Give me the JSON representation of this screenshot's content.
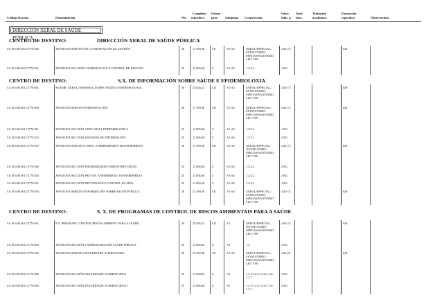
{
  "header": {
    "codigo": "Código de posto",
    "denominacion": "Denominación",
    "niv": "Nív.",
    "complem": "Complem.",
    "especifico": "específico",
    "forma": "Forma",
    "prov": "prov.",
    "subgrupo": "Subgrupo",
    "corpo": "Corpo/escala",
    "adscr": "Adscr.",
    "adm": "Adm. p.",
    "area": "Área",
    "func": "func.",
    "titulacion": "Titulación",
    "academica": "académica",
    "formacion": "Formación",
    "especifica": "específica",
    "observacions": "Observacións"
  },
  "title_box": "DIRECCIÓN XERAL DE SAÚDE PÚBLICA",
  "sections": [
    {
      "label": "CENTRO DE DESTINO:",
      "name": "DIRECCIÓN XERAL DE SAÚDE PÚBLICA",
      "rows": [
        {
          "code": "CS.A03.00.000.15770.040",
          "den": "XEFATURA SERVIZO DE COORDINACIÓN DA XESTIÓN",
          "niv": "28",
          "comp": "17.499,38",
          "forma": "CE",
          "sub": "A1-A2",
          "corpo": "XERAL/ESPECIAL/\nESTATUTARIO\nSERGAS/SANITARIO\nLEI 17/89",
          "adscr": "A20 (7)",
          "form": "640"
        },
        {
          "code": "CS.A03.00.000.15770.041",
          "den": "XEFATURA SECCIÓN COORDINACIÓN E CONTROL DE XESTIÓN",
          "niv": "25",
          "comp": "11.894,68",
          "forma": "C",
          "sub": "A1-A2",
          "corpo": "1.2/2.2",
          "adscr": "AXG",
          "form": ""
        }
      ]
    },
    {
      "label": "CENTRO DE DESTINO:",
      "name": "S.X. DE INFORMACIÓN SOBRE SAÚDE E EPIDEMIOLOXIA",
      "rows": [
        {
          "code": "CS.A03.00.001.15770.001",
          "den": "SUBDIR. XERAL INFORMAC.SOBRE SAÚDE E EPIDEMIOLOXIA",
          "niv": "30",
          "comp": "25.026,22",
          "forma": "LD",
          "sub": "A1-A2",
          "corpo": "XERAL/ESPECIAL/\nESTATUTARIO\nSERGAS/SANITARIO\nLEI 17/89",
          "adscr": "A20 (7)",
          "form": "640"
        },
        {
          "code": "CS.A03.00.001.15770.008",
          "den": "XEFATURA SERVIZO EPIDEMIOLOXÍA",
          "niv": "28",
          "comp": "17.499,38",
          "forma": "LD",
          "sub": "A1-A2",
          "corpo": "XERAL/ESPECIAL/\nESTATUTARIO\nSERGAS/SANITARIO\nLEI 17/89",
          "adscr": "A20 (7)",
          "form": "640"
        },
        {
          "code": "CS.A03.00.001.15770.011",
          "den": "XEFATURA SECCIÓN VIXILANCIA EPIDEMIOLÓXICA",
          "niv": "25",
          "comp": "11.894,68",
          "forma": "C",
          "sub": "A1-A2",
          "corpo": "1.2/2.2",
          "adscr": "AXG",
          "form": ""
        },
        {
          "code": "CS.A03.00.001.15770.013",
          "den": "XEFATURA SECCIÓN SISTEMAS DE INFORMACIÓN",
          "niv": "25",
          "comp": "11.894,68",
          "forma": "C",
          "sub": "A1-A2",
          "corpo": "1.2/2.2",
          "adscr": "AXG",
          "form": ""
        },
        {
          "code": "CS.A03.00.001.15770.015",
          "den": "XEFATURA SERVIZO CTROL. ENFERMIDADES TRANSMISIBLES",
          "niv": "28",
          "comp": "17.499,38",
          "forma": "CE",
          "sub": "A1-A2",
          "corpo": "XERAL/ESPECIAL\n/ESTATUTARIO\nSERGAS/SANITARIO\nLEI 17/89",
          "adscr": "A20 (7)",
          "form": "640"
        },
        {
          "code": "CS.A03.00.001.15770.018",
          "den": "XEFATURA SECCIÓN ENFERMIDADES INMUNOPREVIBLES",
          "niv": "25",
          "comp": "11.894,68",
          "forma": "C",
          "sub": "A1-A2",
          "corpo": "1.2/2.2",
          "adscr": "AXG",
          "form": ""
        },
        {
          "code": "CS.A03.00.001.15770.020",
          "den": "XEFATURA SECCIÓN PREVEN. ENFERMIDAD. TRANSMISIBLES",
          "niv": "25",
          "comp": "11.894,68",
          "forma": "C",
          "sub": "A1-A2",
          "corpo": "1.2/2.2",
          "adscr": "AXG",
          "form": ""
        },
        {
          "code": "CS.A03.00.001.15770.021",
          "den": "XEFATURA SECCIÓN PREVENCIÓN E CONTROL DA SIDA",
          "niv": "25",
          "comp": "11.894,68",
          "forma": "C",
          "sub": "A1-A2",
          "corpo": "1.2/2.2",
          "adscr": "AXG",
          "form": ""
        },
        {
          "code": "CS.A03.00.001.15770.030",
          "den": "XEFATURA SERVIZO INFORMACIÓN SOBRE SAÚDE PÚBLICA",
          "niv": "28",
          "comp": "17.499,38",
          "forma": "CE",
          "sub": "A1-A2",
          "corpo": "XERAL/ESPECIAL/\nESTATUTARIO\nSERGAS/SANITARIO\nLEI 17/89",
          "adscr": "A20 (7)",
          "form": "640"
        }
      ]
    },
    {
      "label": "CENTRO DE DESTINO:",
      "name": "S. X. DE PROGRAMAS DE CONTROL DE RISCOS AMBIENTAIS PARA A SAÚDE",
      "rows": [
        {
          "code": "CS.A03.00.001.15770.001",
          "den": "S.X. PROGRAM. CONTROL RISCOS AMBIENT. PARA A SAÚDE",
          "niv": "30",
          "comp": "25.026,22",
          "forma": "LD",
          "sub": "A1",
          "corpo": "XERAL/ESPECIAL\n/ESTATUTARIO\nSERGAS/SANITARIO\nLEI 17/89",
          "adscr": "A20 (7)",
          "form": "640"
        },
        {
          "code": "CS.A03.00.001.15770.003",
          "den": "XEFATURA SECCIÓN LABORATORIOS DE SAÚDE PÚBLICA",
          "niv": "25",
          "comp": "11.894,68",
          "forma": "C",
          "sub": "A1",
          "corpo": "1.2",
          "adscr": "AXG",
          "form": ""
        },
        {
          "code": "CS.A03.00.001.15770.006",
          "den": "XEFATURA SERVIZO SEGURIDADE ALIMENTARIA",
          "niv": "28",
          "comp": "17.499,38",
          "forma": "CE",
          "sub": "A1-A2",
          "corpo": "XERAL/ESPECIAL/\nESTATUTARIO\nSERGAS/SANITARIO\nLEI 17/89",
          "adscr": "A20 (7)",
          "form": "640"
        },
        {
          "code": "CS.A03.00.001.15770.008",
          "den": "XEFATURA SECCIÓN SEGURIDADE ALIMENTARIA I",
          "niv": "25",
          "comp": "11.894,68",
          "forma": "C",
          "sub": "A1",
          "corpo": "1.2.1/1.2.3/1.2.4/1.2.6/\n1.2.7",
          "adscr": "AXG",
          "form": ""
        },
        {
          "code": "CS.A03.00.001.15770.010",
          "den": "XEFATURA SECCIÓN SEGURIDADE ALIMENTARIA II",
          "niv": "25",
          "comp": "11.894,68",
          "forma": "C",
          "sub": "A1",
          "corpo": "1.2.1/1.2.3/1.2.4/1.2.6/\n1.2.7",
          "adscr": "AXG",
          "form": ""
        }
      ]
    }
  ]
}
